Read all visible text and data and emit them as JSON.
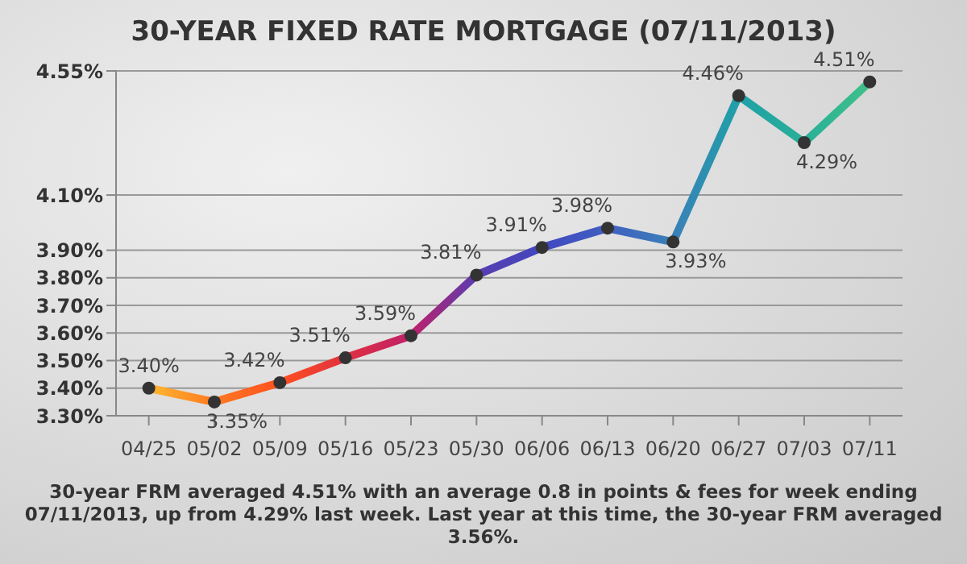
{
  "chart_data": {
    "type": "line",
    "title": "30-YEAR FIXED RATE MORTGAGE (07/11/2013)",
    "categories": [
      "04/25",
      "05/02",
      "05/09",
      "05/16",
      "05/23",
      "05/30",
      "06/06",
      "06/13",
      "06/20",
      "06/27",
      "07/03",
      "07/11"
    ],
    "series": [
      {
        "values": [
          3.4,
          3.35,
          3.42,
          3.51,
          3.59,
          3.81,
          3.91,
          3.98,
          3.93,
          4.46,
          4.29,
          4.51
        ],
        "value_labels": [
          "3.40%",
          "3.35%",
          "3.42%",
          "3.51%",
          "3.59%",
          "3.81%",
          "3.91%",
          "3.98%",
          "3.93%",
          "4.46%",
          "4.29%",
          "4.51%"
        ],
        "colors": [
          "#ffb830",
          "#ff7a20",
          "#ff5020",
          "#e03040",
          "#c0206a",
          "#5a3cb0",
          "#4048c0",
          "#4060c0",
          "#3a80b8",
          "#20a0a8",
          "#28b098",
          "#40c088"
        ]
      }
    ],
    "ylim": [
      3.3,
      4.55
    ],
    "yticks": [
      {
        "value": 3.3,
        "label": "3.30%"
      },
      {
        "value": 3.4,
        "label": "3.40%"
      },
      {
        "value": 3.5,
        "label": "3.50%"
      },
      {
        "value": 3.6,
        "label": "3.60%"
      },
      {
        "value": 3.7,
        "label": "3.70%"
      },
      {
        "value": 3.8,
        "label": "3.80%"
      },
      {
        "value": 3.9,
        "label": "3.90%"
      },
      {
        "value": 4.1,
        "label": "4.10%"
      },
      {
        "value": 4.55,
        "label": "4.55%"
      }
    ],
    "grid": "y",
    "marker": "circle",
    "annotations": [
      "30-year FRM averaged 4.51% with an average 0.8 in points & fees for week ending 07/11/2013, up from 4.29% last week. Last year at this time, the 30-year FRM averaged 3.56%."
    ]
  }
}
